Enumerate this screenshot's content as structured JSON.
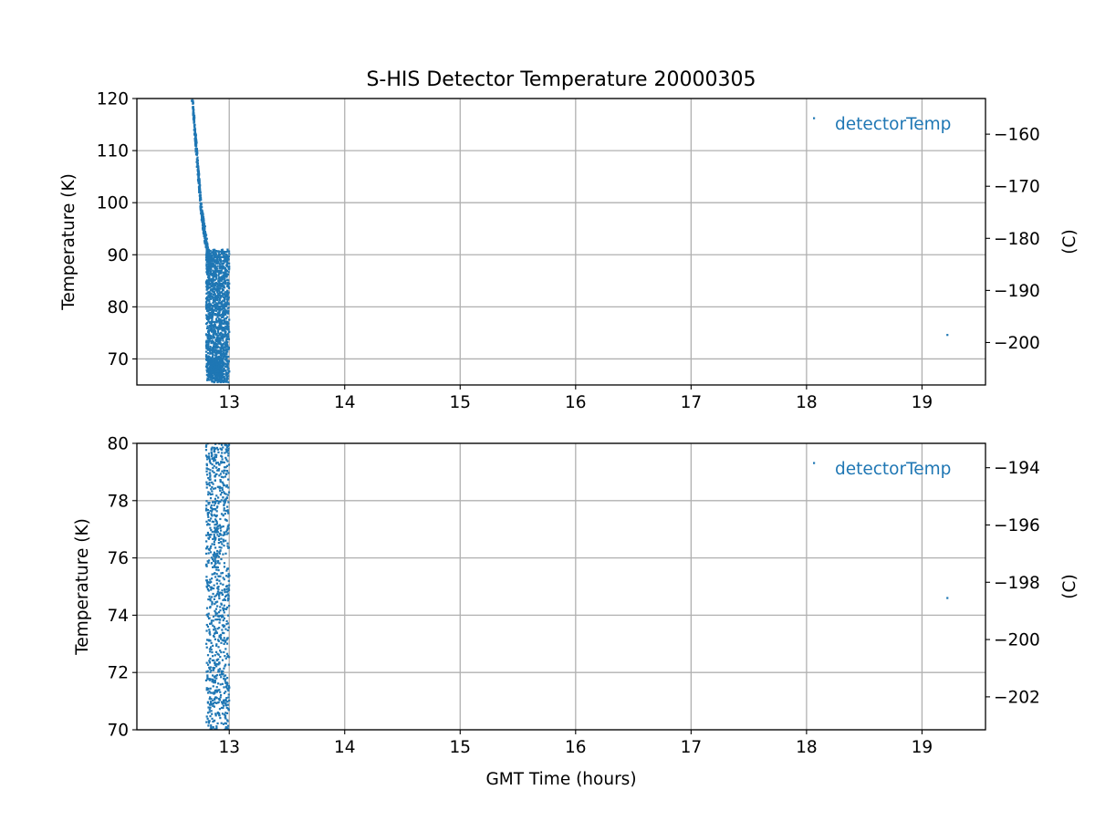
{
  "figure_title": "S-HIS Detector Temperature 20000305",
  "colors": {
    "series": "#1f77b4",
    "grid": "#b0b0b0",
    "axis": "#000000",
    "background": "#ffffff"
  },
  "chart_data": [
    {
      "type": "scatter",
      "id": "upper",
      "title": "S-HIS Detector Temperature 20000305",
      "xlabel": "",
      "ylabel": "Temperature (K)",
      "ylabel_right": "(C)",
      "xlim": [
        12.2,
        19.55
      ],
      "ylim": [
        65,
        120
      ],
      "y2lim": [
        -208.15,
        -153.15
      ],
      "xticks": [
        13,
        14,
        15,
        16,
        17,
        18,
        19
      ],
      "yticks": [
        70,
        80,
        90,
        100,
        110,
        120
      ],
      "y2ticks": [
        -200,
        -190,
        -180,
        -170,
        -160
      ],
      "grid": true,
      "legend": {
        "label": "detectorTemp",
        "position": "top-right"
      },
      "series": [
        {
          "name": "detectorTemp",
          "color": "#1f77b4",
          "segments": [
            {
              "x_start": 12.68,
              "x_end": 12.76,
              "y_start": 120,
              "y_end": 98,
              "spread": 0.9,
              "count": 240
            },
            {
              "x_start": 12.76,
              "x_end": 12.83,
              "y_start": 98,
              "y_end": 88,
              "spread": 2.2,
              "count": 220
            }
          ],
          "bands": [
            {
              "x_min": 12.8,
              "x_max": 13.0,
              "y_min": 65.5,
              "y_max": 91,
              "count": 1500
            },
            {
              "x_min": 12.82,
              "x_max": 12.94,
              "y_min": 66,
              "y_max": 70,
              "count": 250
            }
          ],
          "points": [
            [
              19.22,
              74.6
            ]
          ]
        }
      ]
    },
    {
      "type": "scatter",
      "id": "lower",
      "title": "",
      "xlabel": "GMT Time (hours)",
      "ylabel": "Temperature (K)",
      "ylabel_right": "(C)",
      "xlim": [
        12.2,
        19.55
      ],
      "ylim": [
        70,
        80
      ],
      "y2lim": [
        -203.15,
        -193.15
      ],
      "xticks": [
        13,
        14,
        15,
        16,
        17,
        18,
        19
      ],
      "yticks": [
        70,
        72,
        74,
        76,
        78,
        80
      ],
      "y2ticks": [
        -202,
        -200,
        -198,
        -196,
        -194
      ],
      "grid": true,
      "legend": {
        "label": "detectorTemp",
        "position": "top-right"
      },
      "series": [
        {
          "name": "detectorTemp",
          "color": "#1f77b4",
          "segments": [],
          "bands": [
            {
              "x_min": 12.8,
              "x_max": 13.0,
              "y_min": 70,
              "y_max": 80,
              "count": 900
            }
          ],
          "points": [
            [
              19.22,
              74.6
            ]
          ]
        }
      ]
    }
  ]
}
